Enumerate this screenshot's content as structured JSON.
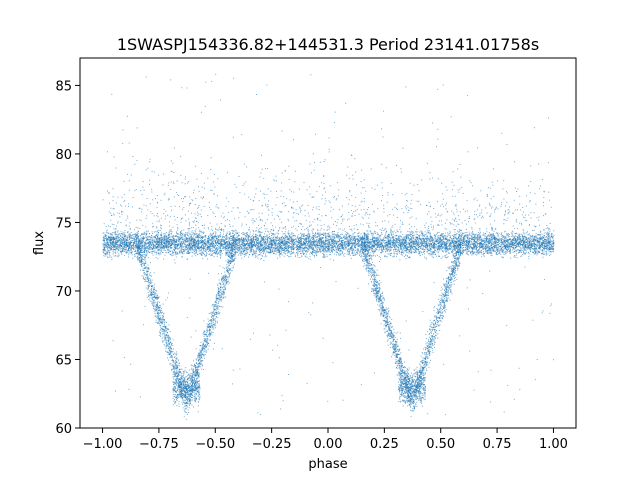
{
  "chart_data": {
    "type": "scatter",
    "title": "1SWASPJ154336.82+144531.3 Period 23141.01758s",
    "xlabel": "phase",
    "ylabel": "flux",
    "xlim": [
      -1.1,
      1.1
    ],
    "ylim": [
      60.0,
      87.0
    ],
    "xticks": [
      -1.0,
      -0.75,
      -0.5,
      -0.25,
      0.0,
      0.25,
      0.5,
      0.75,
      1.0
    ],
    "xtick_labels": [
      "−1.00",
      "−0.75",
      "−0.50",
      "−0.25",
      "0.00",
      "0.25",
      "0.50",
      "0.75",
      "1.00"
    ],
    "yticks": [
      60,
      65,
      70,
      75,
      80,
      85
    ],
    "ytick_labels": [
      "60",
      "65",
      "70",
      "75",
      "80",
      "85"
    ],
    "grid": false,
    "marker_color": "#1f77b4",
    "series": [
      {
        "baseline_flux": 73.5,
        "baseline_scatter": 0.8,
        "eclipse_centers_phase": [
          -0.63,
          0.37
        ],
        "eclipse_min_flux": 62.0,
        "eclipse_half_width_phase": 0.22,
        "outlier_range": [
          61.0,
          86.0
        ]
      }
    ]
  }
}
